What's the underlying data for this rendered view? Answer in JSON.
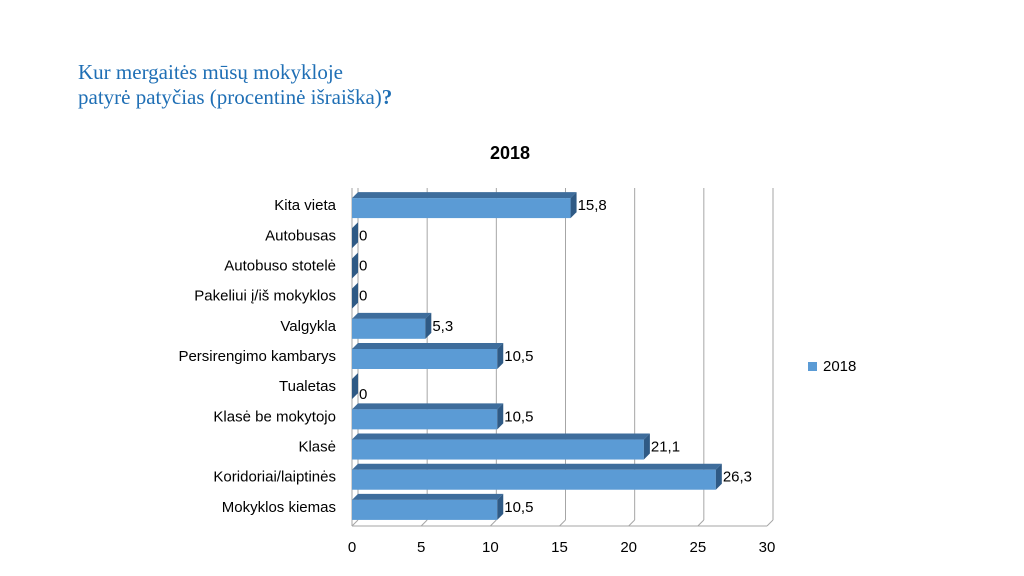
{
  "slide": {
    "title_line1": "Kur mergaitės mūsų mokykloje",
    "title_line2": "patyrė patyčias (procentinė išraiška)",
    "title_mark": "?"
  },
  "chart_data": {
    "type": "bar",
    "orientation": "horizontal",
    "title": "2018",
    "categories": [
      "Kita vieta",
      "Autobusas",
      "Autobuso stotelė",
      "Pakeliui į/iš mokyklos",
      "Valgykla",
      "Persirengimo kambarys",
      "Tualetas",
      "Klasė be mokytojo",
      "Klasė",
      "Koridoriai/laiptinės",
      "Mokyklos kiemas"
    ],
    "series": [
      {
        "name": "2018",
        "values": [
          15.8,
          0,
          0,
          0,
          5.3,
          10.5,
          0,
          10.5,
          21.1,
          26.3,
          10.5
        ],
        "labels": [
          "15,8",
          "0",
          "0",
          "0",
          "5,3",
          "10,5",
          "0",
          "10,5",
          "21,1",
          "26,3",
          "10,5"
        ]
      }
    ],
    "xlim": [
      0,
      30
    ],
    "xticks": [
      0,
      5,
      10,
      15,
      20,
      25,
      30
    ],
    "grid": true,
    "legend_position": "right",
    "colors": {
      "bar_front": "#5b9bd5",
      "bar_top": "#3e6d9c",
      "bar_side": "#2f5a85",
      "grid": "#a6a6a6"
    }
  }
}
